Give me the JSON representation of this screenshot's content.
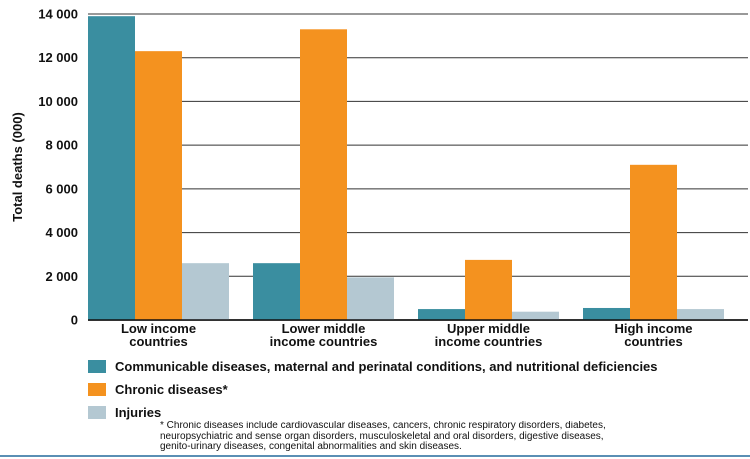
{
  "chart_data": {
    "type": "bar",
    "title": "",
    "xlabel": "",
    "ylabel": "Total deaths (000)",
    "ylim": [
      0,
      14000
    ],
    "yticks": [
      0,
      2000,
      4000,
      6000,
      8000,
      10000,
      12000,
      14000
    ],
    "ytick_labels": [
      "0",
      "2 000",
      "4 000",
      "6 000",
      "8 000",
      "10 000",
      "12 000",
      "14 000"
    ],
    "grid": true,
    "categories": [
      [
        "Low income",
        "countries"
      ],
      [
        "Lower middle",
        "income countries"
      ],
      [
        "Upper middle",
        "income countries"
      ],
      [
        "High income",
        "countries"
      ]
    ],
    "series": [
      {
        "name": "Communicable diseases, maternal and perinatal conditions, and nutritional deficiencies",
        "color": "#3a8ea0",
        "values": [
          13900,
          2600,
          500,
          550
        ]
      },
      {
        "name": "Chronic diseases*",
        "color": "#f4921f",
        "values": [
          12300,
          13300,
          2750,
          7100
        ]
      },
      {
        "name": "Injuries",
        "color": "#b4c8d2",
        "values": [
          2600,
          1950,
          380,
          500
        ]
      }
    ],
    "legend_position": "bottom"
  },
  "footnote": "* Chronic diseases include cardiovascular diseases, cancers, chronic respiratory disorders, diabetes,\nneuropsychiatric and sense organ disorders, musculoskeletal and oral disorders, digestive diseases,\ngenito-urinary diseases, congenital abnormalities and skin diseases.",
  "colors": {
    "accent_rule": "#5a8fb4",
    "grid": "#333333"
  }
}
